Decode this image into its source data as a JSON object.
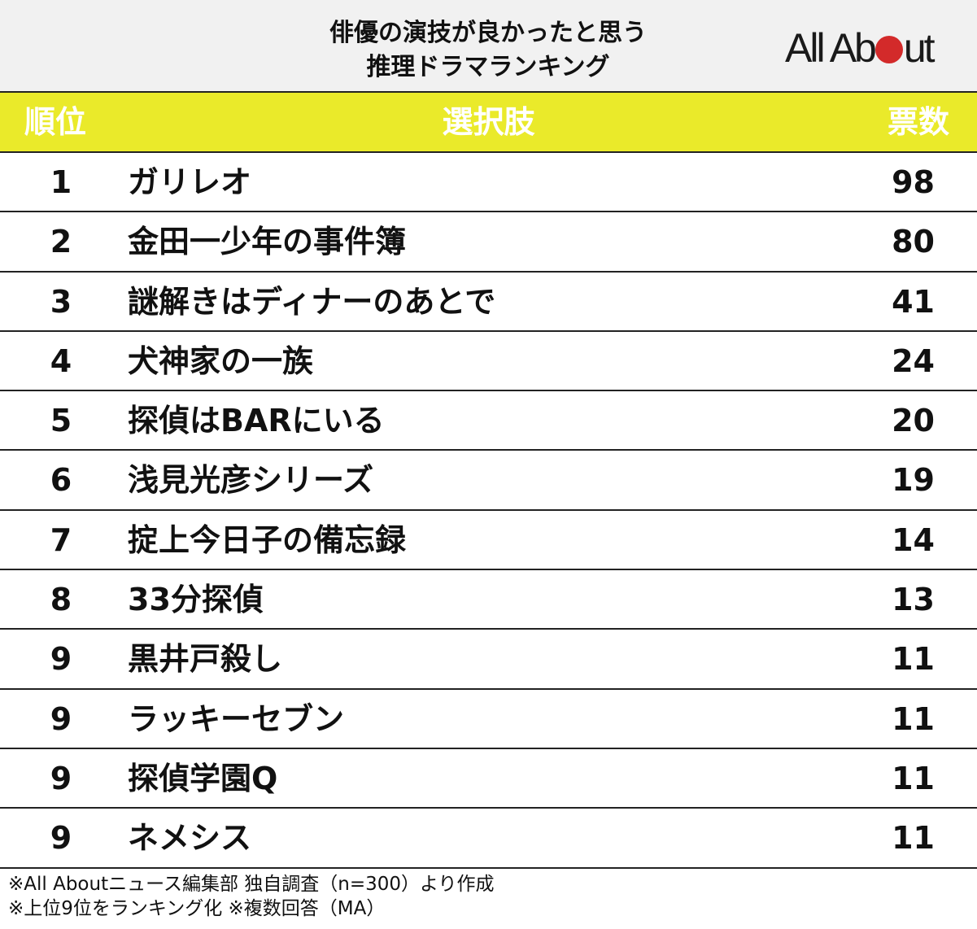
{
  "header": {
    "title_line1": "俳優の演技が良かったと思う",
    "title_line2": "推理ドラマランキング",
    "logo_left": "All Ab",
    "logo_right": "ut",
    "logo_dot_color": "#d32a2a"
  },
  "table": {
    "columns": {
      "rank": "順位",
      "choice": "選択肢",
      "votes": "票数"
    },
    "header_color": "#eaea2a",
    "rows": [
      {
        "rank": "1",
        "name": "ガリレオ",
        "votes": "98"
      },
      {
        "rank": "2",
        "name": "金田一少年の事件簿",
        "votes": "80"
      },
      {
        "rank": "3",
        "name": "謎解きはディナーのあとで",
        "votes": "41"
      },
      {
        "rank": "4",
        "name": "犬神家の一族",
        "votes": "24"
      },
      {
        "rank": "5",
        "name": "探偵はBARにいる",
        "votes": "20"
      },
      {
        "rank": "6",
        "name": "浅見光彦シリーズ",
        "votes": "19"
      },
      {
        "rank": "7",
        "name": "掟上今日子の備忘録",
        "votes": "14"
      },
      {
        "rank": "8",
        "name": "33分探偵",
        "votes": "13"
      },
      {
        "rank": "9",
        "name": "黒井戸殺し",
        "votes": "11"
      },
      {
        "rank": "9",
        "name": "ラッキーセブン",
        "votes": "11"
      },
      {
        "rank": "9",
        "name": "探偵学園Q",
        "votes": "11"
      },
      {
        "rank": "9",
        "name": "ネメシス",
        "votes": "11"
      }
    ]
  },
  "notes": {
    "line1": "※All Aboutニュース編集部 独自調査（n=300）より作成",
    "line2": "※上位9位をランキング化 ※複数回答（MA）"
  },
  "chart_data": {
    "type": "table",
    "title": "俳優の演技が良かったと思う推理ドラマランキング",
    "columns": [
      "順位",
      "選択肢",
      "票数"
    ],
    "categories": [
      "ガリレオ",
      "金田一少年の事件簿",
      "謎解きはディナーのあとで",
      "犬神家の一族",
      "探偵はBARにいる",
      "浅見光彦シリーズ",
      "掟上今日子の備忘録",
      "33分探偵",
      "黒井戸殺し",
      "ラッキーセブン",
      "探偵学園Q",
      "ネメシス"
    ],
    "ranks": [
      1,
      2,
      3,
      4,
      5,
      6,
      7,
      8,
      9,
      9,
      9,
      9
    ],
    "values": [
      98,
      80,
      41,
      24,
      20,
      19,
      14,
      13,
      11,
      11,
      11,
      11
    ],
    "notes": [
      "※All Aboutニュース編集部 独自調査（n=300）より作成",
      "※上位9位をランキング化 ※複数回答（MA）"
    ]
  }
}
